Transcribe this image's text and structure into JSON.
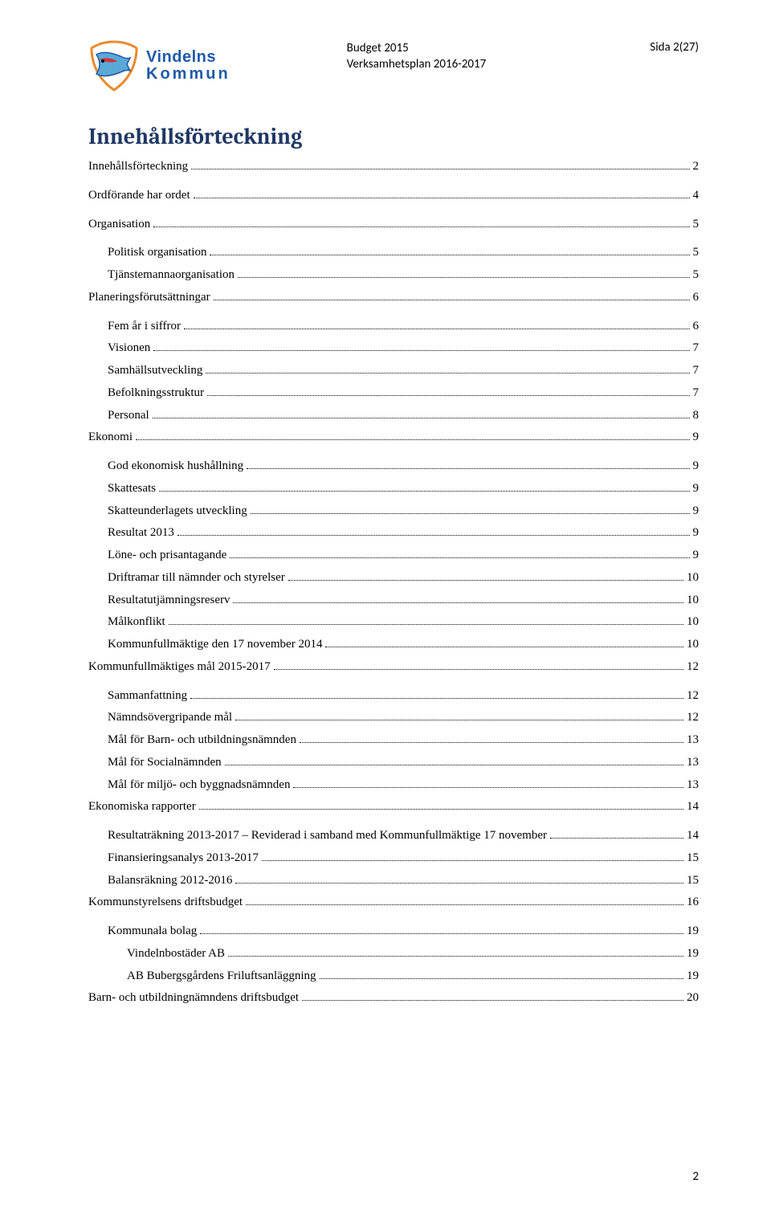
{
  "header": {
    "title_line1": "Budget 2015",
    "title_line2": "Verksamhetsplan 2016-2017",
    "page_indicator": "Sida 2(27)",
    "logo_top": "Vindelns",
    "logo_bot": "Kommun"
  },
  "logo_colors": {
    "orange": "#e88b2d",
    "blue_dark": "#1e5aa8",
    "blue_light": "#5aa8d6",
    "red": "#d4343a",
    "gray": "#888888"
  },
  "toc": {
    "heading": "Innehållsförteckning",
    "entries": [
      {
        "level": 1,
        "label": "Innehållsförteckning",
        "page": "2"
      },
      {
        "gap": true
      },
      {
        "level": 1,
        "label": "Ordförande har ordet",
        "page": "4"
      },
      {
        "gap": true
      },
      {
        "level": 1,
        "label": "Organisation",
        "page": "5"
      },
      {
        "gap": true
      },
      {
        "level": 2,
        "label": "Politisk organisation",
        "page": "5"
      },
      {
        "level": 2,
        "label": "Tjänstemannaorganisation",
        "page": "5"
      },
      {
        "level": 1,
        "label": "Planeringsförutsättningar",
        "page": "6"
      },
      {
        "gap": true
      },
      {
        "level": 2,
        "label": "Fem år i siffror",
        "page": "6"
      },
      {
        "level": 2,
        "label": "Visionen",
        "page": "7"
      },
      {
        "level": 2,
        "label": "Samhällsutveckling",
        "page": "7"
      },
      {
        "level": 2,
        "label": "Befolkningsstruktur",
        "page": "7"
      },
      {
        "level": 2,
        "label": "Personal",
        "page": "8"
      },
      {
        "level": 1,
        "label": "Ekonomi",
        "page": "9"
      },
      {
        "gap": true
      },
      {
        "level": 2,
        "label": "God ekonomisk hushållning",
        "page": "9"
      },
      {
        "level": 2,
        "label": "Skattesats",
        "page": "9"
      },
      {
        "level": 2,
        "label": "Skatteunderlagets utveckling",
        "page": "9"
      },
      {
        "level": 2,
        "label": "Resultat 2013",
        "page": "9"
      },
      {
        "level": 2,
        "label": "Löne- och prisantagande",
        "page": "9"
      },
      {
        "level": 2,
        "label": "Driftramar till nämnder och styrelser",
        "page": "10"
      },
      {
        "level": 2,
        "label": "Resultatutjämningsreserv",
        "page": "10"
      },
      {
        "level": 2,
        "label": "Målkonflikt",
        "page": "10"
      },
      {
        "level": 2,
        "label": "Kommunfullmäktige den 17 november 2014",
        "page": "10"
      },
      {
        "level": 1,
        "label": "Kommunfullmäktiges mål 2015-2017",
        "page": "12"
      },
      {
        "gap": true
      },
      {
        "level": 2,
        "label": "Sammanfattning",
        "page": "12"
      },
      {
        "level": 2,
        "label": "Nämndsövergripande mål",
        "page": "12"
      },
      {
        "level": 2,
        "label": "Mål för Barn- och utbildningsnämnden",
        "page": "13"
      },
      {
        "level": 2,
        "label": "Mål för Socialnämnden",
        "page": "13"
      },
      {
        "level": 2,
        "label": "Mål för miljö- och byggnadsnämnden",
        "page": "13"
      },
      {
        "level": 1,
        "label": "Ekonomiska rapporter",
        "page": "14"
      },
      {
        "gap": true
      },
      {
        "level": 2,
        "label": "Resultaträkning 2013-2017 – Reviderad i samband med Kommunfullmäktige 17 november",
        "page": "14"
      },
      {
        "level": 2,
        "label": "Finansieringsanalys 2013-2017",
        "page": "15"
      },
      {
        "level": 2,
        "label": "Balansräkning 2012-2016",
        "page": "15"
      },
      {
        "level": 1,
        "label": "Kommunstyrelsens driftsbudget",
        "page": "16"
      },
      {
        "gap": true
      },
      {
        "level": 2,
        "label": "Kommunala bolag",
        "page": "19"
      },
      {
        "level": 3,
        "label": "Vindelnbostäder AB",
        "page": "19"
      },
      {
        "level": 3,
        "label": "AB Bubergsgårdens Friluftsanläggning",
        "page": "19"
      },
      {
        "level": 1,
        "label": "Barn- och utbildningnämndens driftsbudget",
        "page": "20"
      }
    ]
  },
  "footer": {
    "page_number": "2"
  }
}
